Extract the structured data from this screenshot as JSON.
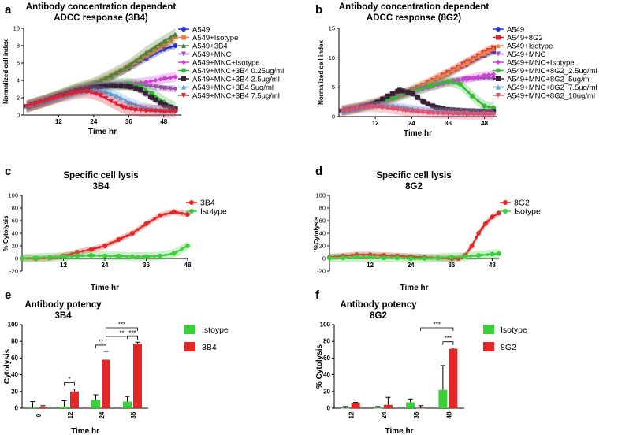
{
  "figure": {
    "panel_labels": [
      "a",
      "b",
      "c",
      "d",
      "e",
      "f"
    ]
  },
  "colors": {
    "A549": "#2233cc",
    "Isotype": "#e8844a",
    "Ab": "#4f7f3b",
    "MNC": "#9a4fb0",
    "MNC_Iso": "#d13fd6",
    "low": "#33bb33",
    "mid": "#3a1f38",
    "high": "#5ea0de",
    "top": "#dd2233",
    "red": "#e32626",
    "green": "#3ccf3c"
  },
  "chart_data": [
    {
      "id": "a",
      "type": "line",
      "title": "Antibody concentration dependent",
      "subtitle": "ADCC response (3B4)",
      "xlabel": "Time hr",
      "ylabel": "Normalized cell index",
      "xlim": [
        0,
        54
      ],
      "ylim": [
        0,
        10
      ],
      "xticks": [
        12,
        24,
        36,
        48
      ],
      "yticks": [
        0,
        2,
        4,
        6,
        8,
        10
      ],
      "legend_position": "top-right",
      "series": [
        {
          "name": "A549",
          "color": "#2233cc",
          "marker": "circle",
          "x": [
            1,
            6,
            12,
            18,
            24,
            30,
            36,
            42,
            48,
            52
          ],
          "y": [
            1,
            1.5,
            2.2,
            3.0,
            3.6,
            4.4,
            5.4,
            6.5,
            7.6,
            8.0
          ]
        },
        {
          "name": "A549+Isotype",
          "color": "#e8844a",
          "marker": "square",
          "x": [
            1,
            6,
            12,
            18,
            24,
            30,
            36,
            42,
            48,
            52
          ],
          "y": [
            1,
            1.5,
            2.2,
            3.0,
            3.6,
            4.5,
            5.6,
            6.9,
            8.1,
            9.0
          ]
        },
        {
          "name": "A549+3B4",
          "color": "#4f7f3b",
          "marker": "triangle",
          "x": [
            1,
            6,
            12,
            18,
            24,
            30,
            36,
            42,
            48,
            52
          ],
          "y": [
            1,
            1.5,
            2.2,
            3.0,
            3.6,
            4.6,
            5.7,
            7.2,
            8.5,
            9.3
          ]
        },
        {
          "name": "A549+MNC",
          "color": "#9a4fb0",
          "marker": "triangle-down",
          "x": [
            1,
            6,
            12,
            18,
            24,
            30,
            36,
            42,
            48,
            52
          ],
          "y": [
            1,
            1.5,
            2.2,
            2.9,
            3.4,
            3.5,
            3.6,
            3.4,
            3.1,
            3.0
          ]
        },
        {
          "name": "A549+MNC+Isotype",
          "color": "#d13fd6",
          "marker": "diamond",
          "x": [
            1,
            6,
            12,
            18,
            24,
            30,
            36,
            42,
            48,
            52
          ],
          "y": [
            1,
            1.5,
            2.2,
            2.9,
            3.3,
            3.5,
            3.6,
            3.8,
            4.2,
            4.4
          ]
        },
        {
          "name": "A549+MNC+3B4 0.25ug/ml",
          "color": "#33bb33",
          "marker": "circle",
          "x": [
            1,
            6,
            12,
            18,
            24,
            30,
            36,
            40,
            44,
            48,
            52
          ],
          "y": [
            1,
            1.5,
            2.2,
            2.9,
            3.3,
            3.5,
            3.6,
            3.3,
            2.5,
            1.5,
            0.8
          ]
        },
        {
          "name": "A549+MNC+3B4 2.5ug/ml",
          "color": "#3a1f38",
          "marker": "square",
          "x": [
            1,
            6,
            12,
            18,
            24,
            30,
            36,
            40,
            44,
            48,
            52
          ],
          "y": [
            1,
            1.5,
            2.2,
            2.8,
            3.2,
            3.4,
            3.3,
            2.9,
            2.0,
            1.2,
            0.7
          ]
        },
        {
          "name": "A549+MNC+3B4 5ug/ml",
          "color": "#5ea0de",
          "marker": "triangle",
          "x": [
            1,
            6,
            12,
            18,
            24,
            28,
            32,
            36,
            40,
            44,
            48,
            52
          ],
          "y": [
            1,
            1.5,
            2.1,
            2.6,
            2.9,
            2.7,
            2.2,
            1.5,
            1.0,
            0.7,
            0.6,
            0.5
          ]
        },
        {
          "name": "A549+MNC+3B4 7.5ug/ml",
          "color": "#dd2233",
          "marker": "triangle-down",
          "x": [
            1,
            6,
            12,
            18,
            22,
            26,
            30,
            34,
            38,
            42,
            48,
            52
          ],
          "y": [
            1,
            1.5,
            2.1,
            2.6,
            2.7,
            2.3,
            1.6,
            0.9,
            0.6,
            0.5,
            0.4,
            0.4
          ]
        }
      ]
    },
    {
      "id": "b",
      "type": "line",
      "title": "Antibody concentration dependent",
      "subtitle": "ADCC response (8G2)",
      "xlabel": "Time hr",
      "ylabel": "Normalized cell index",
      "xlim": [
        0,
        52
      ],
      "ylim": [
        0,
        15
      ],
      "xticks": [
        12,
        24,
        36,
        48
      ],
      "yticks": [
        0,
        5,
        10,
        15
      ],
      "legend_position": "top-right",
      "series": [
        {
          "name": "A549",
          "color": "#2233cc",
          "marker": "circle",
          "x": [
            1,
            6,
            12,
            18,
            24,
            30,
            36,
            42,
            48,
            51
          ],
          "y": [
            1,
            1.5,
            2.3,
            3.3,
            4.4,
            5.7,
            7.2,
            8.8,
            10.4,
            11.0
          ]
        },
        {
          "name": "A549+8G2",
          "color": "#dd2233",
          "marker": "square",
          "x": [
            1,
            6,
            12,
            18,
            24,
            30,
            36,
            42,
            48,
            51
          ],
          "y": [
            1,
            1.5,
            2.3,
            3.3,
            4.5,
            5.9,
            7.5,
            9.2,
            10.9,
            11.7
          ]
        },
        {
          "name": "A549+Isotype",
          "color": "#e8844a",
          "marker": "triangle",
          "x": [
            1,
            6,
            12,
            18,
            24,
            30,
            36,
            42,
            48,
            51
          ],
          "y": [
            1,
            1.5,
            2.3,
            3.3,
            4.5,
            5.9,
            7.4,
            9.1,
            10.8,
            11.5
          ]
        },
        {
          "name": "A549+MNC",
          "color": "#9a4fb0",
          "marker": "triangle-down",
          "x": [
            1,
            6,
            12,
            18,
            24,
            30,
            36,
            42,
            48,
            51
          ],
          "y": [
            1,
            1.5,
            2.3,
            3.2,
            4.2,
            5.1,
            5.9,
            6.4,
            6.6,
            6.5
          ]
        },
        {
          "name": "A549+MNC+Isotype",
          "color": "#d13fd6",
          "marker": "diamond",
          "x": [
            1,
            6,
            12,
            18,
            24,
            30,
            36,
            42,
            48,
            51
          ],
          "y": [
            1,
            1.5,
            2.3,
            3.2,
            4.2,
            5.0,
            5.8,
            6.4,
            7.0,
            7.2
          ]
        },
        {
          "name": "A549+MNC+8G2_2.5ug/ml",
          "color": "#33bb33",
          "marker": "circle",
          "x": [
            1,
            6,
            12,
            18,
            24,
            30,
            36,
            40,
            44,
            48,
            51
          ],
          "y": [
            1,
            1.5,
            2.3,
            3.2,
            4.2,
            5.2,
            6.0,
            5.5,
            3.5,
            1.8,
            1.5
          ]
        },
        {
          "name": "A549+MNC+8G2_5ug/ml",
          "color": "#3a1f38",
          "marker": "square",
          "x": [
            1,
            6,
            12,
            16,
            20,
            24,
            28,
            32,
            36,
            42,
            48,
            51
          ],
          "y": [
            1,
            1.4,
            2.3,
            3.5,
            4.5,
            4.0,
            2.5,
            1.6,
            1.2,
            1.0,
            0.9,
            0.9
          ]
        },
        {
          "name": "A549+MNC+8G2_7.5ug/ml",
          "color": "#5ea0de",
          "marker": "triangle",
          "x": [
            1,
            6,
            10,
            14,
            18,
            22,
            26,
            30,
            36,
            42,
            48,
            51
          ],
          "y": [
            1,
            1.4,
            1.8,
            2.0,
            1.8,
            1.5,
            1.2,
            1.0,
            0.8,
            0.7,
            0.6,
            0.6
          ]
        },
        {
          "name": "A549+MNC+8G2_10ug/ml",
          "color": "#e0506a",
          "marker": "triangle-down",
          "x": [
            1,
            6,
            10,
            14,
            18,
            22,
            26,
            30,
            36,
            42,
            48,
            51
          ],
          "y": [
            1,
            1.4,
            1.7,
            1.6,
            1.3,
            1.0,
            0.8,
            0.6,
            0.5,
            0.4,
            0.4,
            0.4
          ]
        }
      ]
    },
    {
      "id": "c",
      "type": "line",
      "title": "Specific cell lysis",
      "subtitle": "3B4",
      "xlabel": "Time hr",
      "ylabel": "% Cytolysis",
      "xlim": [
        0,
        48
      ],
      "ylim": [
        -20,
        100
      ],
      "xticks": [
        12,
        24,
        36,
        48
      ],
      "yticks": [
        -20,
        0,
        20,
        40,
        60,
        80,
        100
      ],
      "legend_position": "top-right",
      "series": [
        {
          "name": "3B4",
          "color": "#e32626",
          "marker": "circle",
          "x": [
            0,
            4,
            8,
            12,
            16,
            20,
            24,
            28,
            32,
            36,
            40,
            44,
            48
          ],
          "y": [
            0,
            0,
            1,
            4,
            10,
            14,
            20,
            30,
            40,
            55,
            68,
            74,
            70
          ]
        },
        {
          "name": "Isotype",
          "color": "#3ccf3c",
          "marker": "circle",
          "x": [
            0,
            4,
            8,
            12,
            16,
            20,
            24,
            28,
            32,
            36,
            40,
            44,
            48
          ],
          "y": [
            0,
            1,
            2,
            3,
            4,
            5,
            4,
            4,
            3,
            3,
            4,
            8,
            20
          ]
        }
      ]
    },
    {
      "id": "d",
      "type": "line",
      "title": "Specific cell lysis",
      "subtitle": "8G2",
      "xlabel": "Time hr",
      "ylabel": "%Cytolysis",
      "xlim": [
        0,
        50
      ],
      "ylim": [
        -20,
        100
      ],
      "xticks": [
        12,
        24,
        36,
        48
      ],
      "yticks": [
        -20,
        0,
        20,
        40,
        60,
        80,
        100
      ],
      "legend_position": "top-right",
      "series": [
        {
          "name": "8G2",
          "color": "#e32626",
          "marker": "circle",
          "x": [
            0,
            4,
            8,
            12,
            16,
            20,
            24,
            28,
            32,
            36,
            38,
            40,
            42,
            44,
            46,
            48,
            50
          ],
          "y": [
            2,
            4,
            6,
            6,
            5,
            4,
            3,
            2,
            1,
            0,
            0,
            5,
            20,
            40,
            55,
            66,
            72
          ]
        },
        {
          "name": "Isotype",
          "color": "#3ccf3c",
          "marker": "circle",
          "x": [
            0,
            4,
            8,
            12,
            16,
            20,
            24,
            28,
            32,
            36,
            40,
            44,
            48,
            50
          ],
          "y": [
            1,
            1,
            2,
            2,
            1,
            1,
            0,
            0,
            1,
            2,
            3,
            5,
            7,
            8
          ]
        }
      ]
    },
    {
      "id": "e",
      "type": "bar",
      "title": "Antibody potency",
      "subtitle": "3B4",
      "xlabel": "Time hr",
      "ylabel": "Cytolysis",
      "ylim": [
        0,
        100
      ],
      "yticks": [
        0,
        20,
        40,
        60,
        80,
        100
      ],
      "categories": [
        "0",
        "12",
        "24",
        "36"
      ],
      "legend_position": "top-right",
      "series": [
        {
          "name": "Istoype",
          "color": "#3ccf3c",
          "values": [
            1,
            2,
            10,
            8
          ],
          "errors": [
            7,
            7,
            6,
            6
          ]
        },
        {
          "name": "3B4",
          "color": "#e32626",
          "values": [
            2,
            20,
            58,
            77
          ],
          "errors": [
            1,
            3,
            10,
            2
          ]
        }
      ],
      "annotations": [
        {
          "category": "12",
          "text": "*"
        },
        {
          "category": "24",
          "text": "**"
        },
        {
          "category": "24-36",
          "text": "***"
        },
        {
          "category": "24-36",
          "text": "**"
        },
        {
          "category": "36",
          "text": "***"
        }
      ]
    },
    {
      "id": "f",
      "type": "bar",
      "title": "Antibody potency",
      "subtitle": "8G2",
      "xlabel": "Time hr",
      "ylabel": "% Cytolysis",
      "ylim": [
        0,
        100
      ],
      "yticks": [
        0,
        20,
        40,
        60,
        80,
        100
      ],
      "categories": [
        "12",
        "24",
        "36",
        "48"
      ],
      "legend_position": "top-right",
      "series": [
        {
          "name": "Isotype",
          "color": "#3ccf3c",
          "values": [
            0,
            0,
            7,
            22
          ],
          "errors": [
            2,
            2,
            4,
            29
          ]
        },
        {
          "name": "8G2",
          "color": "#e32626",
          "values": [
            6,
            4,
            0,
            71
          ],
          "errors": [
            1,
            9,
            3,
            1
          ]
        }
      ],
      "annotations": [
        {
          "category": "36-48",
          "text": "***"
        },
        {
          "category": "48",
          "text": "***"
        }
      ]
    }
  ]
}
